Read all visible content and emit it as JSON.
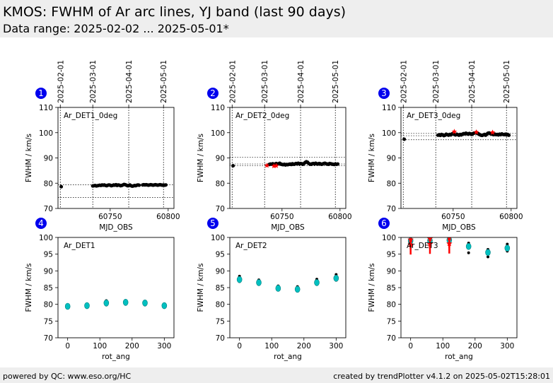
{
  "header": {
    "title": "KMOS: FWHM of Ar arc lines, YJ band (last 90 days)",
    "subtitle": "Data range: 2025-02-02 ... 2025-05-01*"
  },
  "footer": {
    "left": "powered by QC: www.eso.org/HC",
    "right": "created by trendPlotter v4.1.2 on 2025-05-02T15:28:01"
  },
  "colors": {
    "background_band": "#eeeeee",
    "badge": "#0000ee",
    "point": "#000000",
    "flag": "#ff0000",
    "fit_marker": "#00c0c0"
  },
  "chart_data": [
    {
      "id": 1,
      "type": "scatter",
      "label": "Ar_DET1_0deg",
      "xlabel": "MJD_OBS",
      "ylabel": "FWHM / km/s",
      "xlim": [
        60705,
        60805
      ],
      "ylim": [
        70,
        110
      ],
      "xticks": [
        60750,
        60800
      ],
      "yticks": [
        70,
        80,
        90,
        100,
        110
      ],
      "date_ticks": [
        {
          "mjd": 60707,
          "label": "2025-02-01"
        },
        {
          "mjd": 60735,
          "label": "2025-03-01"
        },
        {
          "mjd": 60766,
          "label": "2025-04-01"
        },
        {
          "mjd": 60796,
          "label": "2025-05-01"
        }
      ],
      "hlines": [
        74.3,
        79.4
      ],
      "points": [
        [
          60707.8,
          78.6
        ],
        [
          60735,
          78.9
        ],
        [
          60736,
          79.0
        ],
        [
          60737,
          79.1
        ],
        [
          60738,
          78.9
        ],
        [
          60739,
          79.0
        ],
        [
          60740,
          79.1
        ],
        [
          60741,
          79.2
        ],
        [
          60742,
          79.1
        ],
        [
          60743,
          79.3
        ],
        [
          60744,
          79.2
        ],
        [
          60745,
          79.3
        ],
        [
          60746,
          79.1
        ],
        [
          60747,
          79.0
        ],
        [
          60748,
          79.2
        ],
        [
          60749,
          79.3
        ],
        [
          60750,
          79.2
        ],
        [
          60751,
          79.0
        ],
        [
          60752,
          79.1
        ],
        [
          60753,
          79.3
        ],
        [
          60754,
          79.2
        ],
        [
          60755,
          79.4
        ],
        [
          60756,
          79.1
        ],
        [
          60757,
          79.3
        ],
        [
          60758,
          79.2
        ],
        [
          60759,
          79.0
        ],
        [
          60760,
          79.1
        ],
        [
          60761,
          79.3
        ],
        [
          60762,
          79.5
        ],
        [
          60763,
          79.4
        ],
        [
          60764,
          79.2
        ],
        [
          60765,
          79.0
        ],
        [
          60766,
          79.1
        ],
        [
          60767,
          79.3
        ],
        [
          60768,
          79.0
        ],
        [
          60769,
          78.8
        ],
        [
          60770,
          78.9
        ],
        [
          60771,
          79.1
        ],
        [
          60772,
          79.0
        ],
        [
          60773,
          79.2
        ],
        [
          60774,
          79.3
        ],
        [
          60775,
          79.2
        ],
        [
          60778,
          79.3
        ],
        [
          60779,
          79.4
        ],
        [
          60780,
          79.3
        ],
        [
          60781,
          79.4
        ],
        [
          60782,
          79.3
        ],
        [
          60783,
          79.2
        ],
        [
          60784,
          79.3
        ],
        [
          60785,
          79.4
        ],
        [
          60786,
          79.3
        ],
        [
          60787,
          79.2
        ],
        [
          60788,
          79.3
        ],
        [
          60789,
          79.4
        ],
        [
          60790,
          79.3
        ],
        [
          60791,
          79.2
        ],
        [
          60792,
          79.3
        ],
        [
          60793,
          79.4
        ],
        [
          60794,
          79.3
        ],
        [
          60795,
          79.2
        ],
        [
          60796,
          79.3
        ],
        [
          60797,
          79.2
        ],
        [
          60798,
          79.3
        ]
      ],
      "flags": []
    },
    {
      "id": 2,
      "type": "scatter",
      "label": "Ar_DET2_0deg",
      "xlabel": "MJD_OBS",
      "ylabel": "FWHM / km/s",
      "xlim": [
        60705,
        60805
      ],
      "ylim": [
        70,
        110
      ],
      "xticks": [
        60750,
        60800
      ],
      "yticks": [
        70,
        80,
        90,
        100,
        110
      ],
      "date_ticks": [
        {
          "mjd": 60707,
          "label": "2025-02-01"
        },
        {
          "mjd": 60735,
          "label": "2025-03-01"
        },
        {
          "mjd": 60766,
          "label": "2025-04-01"
        },
        {
          "mjd": 60796,
          "label": "2025-05-01"
        }
      ],
      "hlines": [
        86.9,
        87.6,
        90.3
      ],
      "points": [
        [
          60707.8,
          86.9
        ],
        [
          60739,
          87.4
        ],
        [
          60740,
          87.6
        ],
        [
          60741,
          87.5
        ],
        [
          60742,
          87.7
        ],
        [
          60743,
          87.4
        ],
        [
          60744,
          87.6
        ],
        [
          60745,
          87.8
        ],
        [
          60746,
          87.5
        ],
        [
          60747,
          87.7
        ],
        [
          60748,
          87.9
        ],
        [
          60749,
          87.6
        ],
        [
          60750,
          87.4
        ],
        [
          60751,
          87.3
        ],
        [
          60752,
          87.5
        ],
        [
          60753,
          87.2
        ],
        [
          60754,
          87.4
        ],
        [
          60755,
          87.3
        ],
        [
          60756,
          87.5
        ],
        [
          60757,
          87.6
        ],
        [
          60758,
          87.4
        ],
        [
          60759,
          87.7
        ],
        [
          60760,
          87.5
        ],
        [
          60761,
          87.6
        ],
        [
          60762,
          87.8
        ],
        [
          60763,
          87.7
        ],
        [
          60764,
          87.9
        ],
        [
          60765,
          87.6
        ],
        [
          60766,
          87.8
        ],
        [
          60767,
          87.7
        ],
        [
          60768,
          87.5
        ],
        [
          60769,
          87.8
        ],
        [
          60770,
          88.2
        ],
        [
          60771,
          88.5
        ],
        [
          60772,
          88.3
        ],
        [
          60773,
          87.8
        ],
        [
          60774,
          87.6
        ],
        [
          60775,
          87.5
        ],
        [
          60776,
          87.7
        ],
        [
          60777,
          87.8
        ],
        [
          60778,
          87.6
        ],
        [
          60779,
          87.9
        ],
        [
          60780,
          87.7
        ],
        [
          60781,
          87.6
        ],
        [
          60782,
          87.8
        ],
        [
          60783,
          87.7
        ],
        [
          60784,
          87.5
        ],
        [
          60785,
          87.6
        ],
        [
          60786,
          87.8
        ],
        [
          60787,
          87.9
        ],
        [
          60788,
          87.7
        ],
        [
          60789,
          87.6
        ],
        [
          60790,
          87.5
        ],
        [
          60791,
          87.8
        ],
        [
          60792,
          87.7
        ],
        [
          60793,
          87.6
        ],
        [
          60794,
          87.5
        ],
        [
          60795,
          87.4
        ],
        [
          60796,
          87.6
        ],
        [
          60797,
          87.5
        ],
        [
          60798,
          87.6
        ]
      ],
      "flags": [
        [
          60737,
          87.0
        ],
        [
          60743,
          86.8
        ],
        [
          60745,
          86.9
        ]
      ]
    },
    {
      "id": 3,
      "type": "scatter",
      "label": "Ar_DET3_0deg",
      "xlabel": "MJD_OBS",
      "ylabel": "FWHM / km/s",
      "xlim": [
        60705,
        60805
      ],
      "ylim": [
        70,
        110
      ],
      "xticks": [
        60750,
        60800
      ],
      "yticks": [
        70,
        80,
        90,
        100,
        110
      ],
      "date_ticks": [
        {
          "mjd": 60707,
          "label": "2025-02-01"
        },
        {
          "mjd": 60735,
          "label": "2025-03-01"
        },
        {
          "mjd": 60766,
          "label": "2025-04-01"
        },
        {
          "mjd": 60796,
          "label": "2025-05-01"
        }
      ],
      "hlines": [
        97.2,
        98.8,
        99.7
      ],
      "points": [
        [
          60707.8,
          97.4
        ],
        [
          60737,
          99.0
        ],
        [
          60738,
          99.2
        ],
        [
          60739,
          98.9
        ],
        [
          60740,
          99.3
        ],
        [
          60741,
          99.1
        ],
        [
          60742,
          98.8
        ],
        [
          60743,
          99.0
        ],
        [
          60744,
          99.4
        ],
        [
          60745,
          99.2
        ],
        [
          60746,
          99.0
        ],
        [
          60747,
          99.3
        ],
        [
          60748,
          99.1
        ],
        [
          60749,
          99.5
        ],
        [
          60750,
          99.6
        ],
        [
          60751,
          99.3
        ],
        [
          60752,
          99.1
        ],
        [
          60753,
          99.4
        ],
        [
          60754,
          99.2
        ],
        [
          60755,
          99.0
        ],
        [
          60756,
          99.3
        ],
        [
          60757,
          99.1
        ],
        [
          60758,
          99.4
        ],
        [
          60759,
          99.6
        ],
        [
          60760,
          99.5
        ],
        [
          60761,
          99.8
        ],
        [
          60762,
          99.6
        ],
        [
          60763,
          99.4
        ],
        [
          60764,
          99.7
        ],
        [
          60765,
          99.5
        ],
        [
          60766,
          99.3
        ],
        [
          60767,
          99.6
        ],
        [
          60768,
          99.8
        ],
        [
          60769,
          99.9
        ],
        [
          60770,
          100.1
        ],
        [
          60771,
          99.7
        ],
        [
          60772,
          99.5
        ],
        [
          60773,
          99.2
        ],
        [
          60774,
          99.0
        ],
        [
          60775,
          98.9
        ],
        [
          60776,
          99.1
        ],
        [
          60777,
          99.3
        ],
        [
          60778,
          99.0
        ],
        [
          60779,
          99.4
        ],
        [
          60780,
          99.8
        ],
        [
          60781,
          99.9
        ],
        [
          60782,
          99.6
        ],
        [
          60783,
          99.5
        ],
        [
          60784,
          99.3
        ],
        [
          60785,
          99.2
        ],
        [
          60786,
          99.4
        ],
        [
          60787,
          99.2
        ],
        [
          60788,
          99.3
        ],
        [
          60789,
          99.1
        ],
        [
          60790,
          99.4
        ],
        [
          60791,
          99.2
        ],
        [
          60792,
          99.5
        ],
        [
          60793,
          99.3
        ],
        [
          60794,
          99.2
        ],
        [
          60795,
          99.4
        ],
        [
          60796,
          99.1
        ],
        [
          60797,
          99.3
        ],
        [
          60798,
          99.0
        ]
      ],
      "flags": [
        [
          60751,
          100.4
        ],
        [
          60770,
          100.2
        ],
        [
          60784,
          100.1
        ]
      ]
    },
    {
      "id": 4,
      "type": "scatter",
      "label": "Ar_DET1",
      "xlabel": "rot_ang",
      "ylabel": "FWHM / km/s",
      "xlim": [
        -30,
        330
      ],
      "ylim": [
        70,
        100
      ],
      "xticks": [
        0,
        100,
        200,
        300
      ],
      "yticks": [
        70,
        75,
        80,
        85,
        90,
        95,
        100
      ],
      "groups": [
        {
          "x": 0,
          "mean": 79.4,
          "points": [
            79.0,
            79.3,
            79.6,
            79.8
          ]
        },
        {
          "x": 60,
          "mean": 79.6,
          "points": [
            79.1,
            79.4,
            79.7,
            80.0
          ]
        },
        {
          "x": 120,
          "mean": 80.4,
          "points": [
            79.8,
            80.2,
            80.6,
            81.1
          ]
        },
        {
          "x": 180,
          "mean": 80.6,
          "points": [
            80.0,
            80.4,
            80.8,
            81.1
          ]
        },
        {
          "x": 240,
          "mean": 80.4,
          "points": [
            79.8,
            80.2,
            80.6,
            80.9
          ]
        },
        {
          "x": 300,
          "mean": 79.6,
          "points": [
            79.2,
            79.5,
            79.8,
            80.0
          ]
        }
      ],
      "flags": []
    },
    {
      "id": 5,
      "type": "scatter",
      "label": "Ar_DET2",
      "xlabel": "rot_ang",
      "ylabel": "FWHM / km/s",
      "xlim": [
        -30,
        330
      ],
      "ylim": [
        70,
        100
      ],
      "xticks": [
        0,
        100,
        200,
        300
      ],
      "yticks": [
        70,
        75,
        80,
        85,
        90,
        95,
        100
      ],
      "groups": [
        {
          "x": 0,
          "mean": 87.4,
          "points": [
            86.8,
            87.3,
            87.9,
            88.4
          ]
        },
        {
          "x": 60,
          "mean": 86.5,
          "points": [
            86.0,
            86.4,
            86.9,
            87.3
          ]
        },
        {
          "x": 120,
          "mean": 84.8,
          "points": [
            84.3,
            84.7,
            85.1,
            85.5
          ]
        },
        {
          "x": 180,
          "mean": 84.5,
          "points": [
            84.0,
            84.4,
            84.8,
            85.3
          ]
        },
        {
          "x": 240,
          "mean": 86.5,
          "points": [
            86.0,
            86.5,
            87.0,
            87.5
          ]
        },
        {
          "x": 300,
          "mean": 87.8,
          "points": [
            87.2,
            87.7,
            88.3,
            88.9
          ]
        }
      ],
      "flags": []
    },
    {
      "id": 6,
      "type": "scatter",
      "label": "Ar_DET3",
      "xlabel": "rot_ang",
      "ylabel": "FWHM / km/s",
      "xlim": [
        -30,
        330
      ],
      "ylim": [
        70,
        100
      ],
      "xticks": [
        0,
        100,
        200,
        300
      ],
      "yticks": [
        70,
        75,
        80,
        85,
        90,
        95,
        100
      ],
      "groups": [
        {
          "x": 0,
          "mean": 99.0,
          "points": [
            98.3,
            98.9,
            99.5,
            100
          ]
        },
        {
          "x": 60,
          "mean": 99.0,
          "points": [
            98.2,
            98.8,
            99.4,
            100
          ]
        },
        {
          "x": 120,
          "mean": 99.2,
          "points": [
            98.5,
            99.0,
            99.6,
            100
          ]
        },
        {
          "x": 180,
          "mean": 97.3,
          "points": [
            95.4,
            96.8,
            97.6,
            98.3
          ]
        },
        {
          "x": 240,
          "mean": 95.5,
          "points": [
            94.2,
            95.1,
            95.8,
            96.4
          ]
        },
        {
          "x": 300,
          "mean": 96.8,
          "points": [
            95.9,
            96.5,
            97.3,
            98.0
          ]
        }
      ],
      "flags": [
        [
          0,
          98.5
        ],
        [
          0,
          97.0
        ],
        [
          60,
          98.8
        ],
        [
          60,
          97.2
        ],
        [
          120,
          99.0
        ],
        [
          120,
          97.3
        ]
      ]
    }
  ]
}
